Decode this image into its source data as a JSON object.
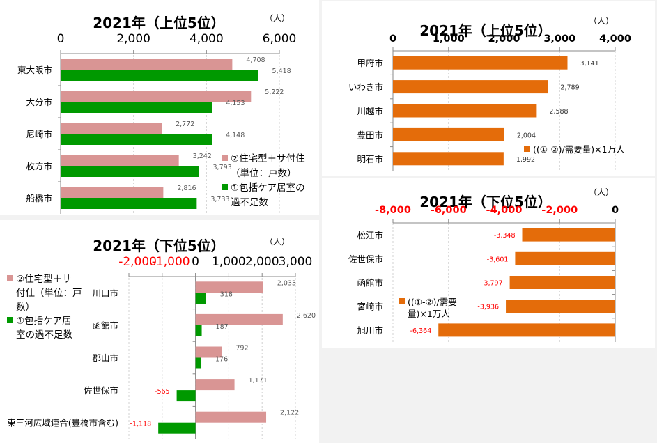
{
  "colors": {
    "pink": "#d99594",
    "green": "#009900",
    "orange": "#e46c0a",
    "negative_text": "#ff0000",
    "label": "#595959"
  },
  "chart_data": [
    {
      "type": "bar",
      "orientation": "horizontal",
      "title": "2021年（上位5位）",
      "unit": "（人）",
      "xlim": [
        0,
        6000
      ],
      "ticks": [
        0,
        2000,
        4000,
        6000
      ],
      "tick_labels": [
        "0",
        "2,000",
        "4,000",
        "6,000"
      ],
      "categories": [
        "東大阪市",
        "大分市",
        "尼崎市",
        "枚方市",
        "船橋市"
      ],
      "series": [
        {
          "name": "②住宅型＋サ付住（単位：戸数）",
          "color": "#d99594",
          "values": [
            4708,
            5222,
            2772,
            3242,
            2816
          ],
          "labels": [
            "4,708",
            "5,222",
            "2,772",
            "3,242",
            "2,816"
          ]
        },
        {
          "name": "①包括ケア居室の過不足数",
          "color": "#009900",
          "values": [
            5418,
            4153,
            4148,
            3793,
            3733
          ],
          "labels": [
            "5,418",
            "4,153",
            "4,148",
            "3,793",
            "3,733"
          ]
        }
      ],
      "legend": {
        "placement": "right",
        "lines": [
          [
            "②住宅型＋サ付住",
            "（単位：戸数）"
          ],
          [
            "①包括ケア居室の",
            "過不足数"
          ]
        ]
      },
      "grid": true
    },
    {
      "type": "bar",
      "orientation": "horizontal",
      "title": "2021年（下位5位）",
      "unit": "（人）",
      "xlim": [
        -2000,
        3000
      ],
      "ticks": [
        -2000,
        -1000,
        0,
        1000,
        2000,
        3000
      ],
      "tick_labels": [
        "-2,000",
        "-1,000",
        "0",
        "1,000",
        "2,000",
        "3,000"
      ],
      "categories": [
        "川口市",
        "函館市",
        "郡山市",
        "佐世保市",
        "東三河広域連合(豊橋市含む)"
      ],
      "series": [
        {
          "name": "②住宅型＋サ付住（単位：戸数）",
          "color": "#d99594",
          "values": [
            2033,
            2620,
            792,
            1171,
            2122
          ],
          "labels": [
            "2,033",
            "2,620",
            "792",
            "1,171",
            "2,122"
          ]
        },
        {
          "name": "①包括ケア居室の過不足数",
          "color": "#009900",
          "values": [
            318,
            187,
            176,
            -565,
            -1118
          ],
          "labels": [
            "318",
            "187",
            "176",
            "-565",
            "-1,118"
          ]
        }
      ],
      "legend": {
        "placement": "left",
        "lines": [
          [
            "②住宅型＋サ",
            "付住（単位：戸",
            "数）"
          ],
          [
            "①包括ケア居",
            "室の過不足数"
          ]
        ]
      },
      "grid": true
    },
    {
      "type": "bar",
      "orientation": "horizontal",
      "title": "2021年（上位5位）",
      "unit": "（人）",
      "xlim": [
        0,
        4000
      ],
      "ticks": [
        0,
        1000,
        2000,
        3000,
        4000
      ],
      "tick_labels": [
        "0",
        "1,000",
        "2,000",
        "3,000",
        "4,000"
      ],
      "categories": [
        "甲府市",
        "いわき市",
        "川越市",
        "豊田市",
        "明石市"
      ],
      "series": [
        {
          "name": "((①-②)/需要量)×1万人",
          "color": "#e46c0a",
          "values": [
            3141,
            2789,
            2588,
            2004,
            1992
          ],
          "labels": [
            "3,141",
            "2,789",
            "2,588",
            "2,004",
            "1,992"
          ]
        }
      ],
      "legend": {
        "placement": "bottom-right",
        "lines": [
          [
            "((①-②)/需要量)×1万人"
          ]
        ]
      },
      "grid": true
    },
    {
      "type": "bar",
      "orientation": "horizontal",
      "title": "2021年（下位5位）",
      "unit": "（人）",
      "xlim": [
        -8000,
        0
      ],
      "ticks": [
        -8000,
        -6000,
        -4000,
        -2000,
        0
      ],
      "tick_labels": [
        "-8,000",
        "-6,000",
        "-4,000",
        "-2,000",
        "0"
      ],
      "categories": [
        "松江市",
        "佐世保市",
        "函館市",
        "宮崎市",
        "旭川市"
      ],
      "series": [
        {
          "name": "((①-②)/需要量)×1万人",
          "color": "#e46c0a",
          "values": [
            -3348,
            -3601,
            -3797,
            -3936,
            -6364
          ],
          "labels": [
            "-3,348",
            "-3,601",
            "-3,797",
            "-3,936",
            "-6,364"
          ]
        }
      ],
      "legend": {
        "placement": "top-left",
        "lines": [
          [
            "((①-②)/需要",
            "量)×1万人"
          ]
        ]
      },
      "grid": true
    }
  ]
}
